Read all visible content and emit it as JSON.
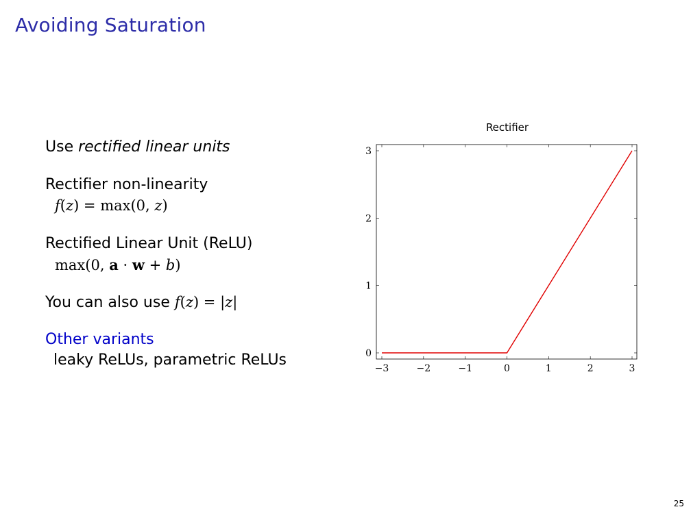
{
  "slide": {
    "title": "Avoiding Saturation",
    "page_number": "25"
  },
  "content": {
    "item1_prefix": "Use ",
    "item1_emph": "rectified linear units",
    "item2_label": "Rectifier non-linearity",
    "item2_formula": "f(z) = max(0, z)",
    "item3_label": "Rectified Linear Unit (ReLU)",
    "item3_formula": "max(0, a · w + b)",
    "item4_prefix": "You can also use ",
    "item4_formula": "f(z) = |z|",
    "variants_title": "Other variants",
    "variants_desc": "leaky ReLUs, parametric ReLUs"
  },
  "chart_data": {
    "type": "line",
    "title": "Rectifier",
    "xlim": [
      -3,
      3
    ],
    "ylim": [
      0,
      3
    ],
    "x_ticks": [
      -3,
      -2,
      -1,
      0,
      1,
      2,
      3
    ],
    "x_tick_labels": [
      "−3",
      "−2",
      "−1",
      "0",
      "1",
      "2",
      "3"
    ],
    "y_ticks": [
      0,
      1,
      2,
      3
    ],
    "y_tick_labels": [
      "0",
      "1",
      "2",
      "3"
    ],
    "grid": false,
    "series": [
      {
        "color": "#e00000",
        "x": [
          -3,
          0,
          3
        ],
        "y": [
          0,
          0,
          3
        ]
      }
    ]
  },
  "colors": {
    "title": "#2d2da8",
    "variants": "#0000c8",
    "line": "#e00000"
  }
}
